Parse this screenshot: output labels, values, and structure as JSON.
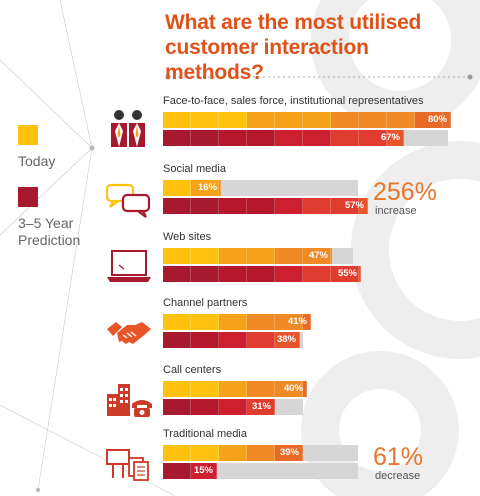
{
  "title": "What are the most utilised customer interaction methods?",
  "legend": [
    {
      "label": "Today",
      "color": "#ffc20e"
    },
    {
      "label": "3–5 Year Prediction",
      "color": "#a6192e"
    }
  ],
  "chart_data": {
    "type": "bar",
    "orientation": "horizontal",
    "title": "What are the most utilised customer interaction methods?",
    "categories": [
      "Face-to-face, sales force, institutional representatives",
      "Social media",
      "Web sites",
      "Channel partners",
      "Call centers",
      "Traditional media"
    ],
    "series": [
      {
        "name": "Today",
        "values": [
          80,
          16,
          47,
          41,
          40,
          39
        ]
      },
      {
        "name": "3–5 Year Prediction",
        "values": [
          67,
          57,
          55,
          38,
          31,
          15
        ]
      }
    ],
    "value_labels": {
      "today": [
        "80%",
        "16%",
        "47%",
        "41%",
        "40%",
        "39%"
      ],
      "prediction": [
        "67%",
        "57%",
        "55%",
        "38%",
        "31%",
        "15%"
      ]
    },
    "xlim": [
      0,
      100
    ],
    "annotations": [
      {
        "category": "Social media",
        "value": "256%",
        "label": "increase"
      },
      {
        "category": "Traditional media",
        "value": "61%",
        "label": "decrease"
      }
    ]
  },
  "icons": [
    "people-icon",
    "chat-bubbles-icon",
    "laptop-icon",
    "handshake-icon",
    "buildings-phone-icon",
    "billboard-documents-icon"
  ],
  "colors": {
    "title": "#e0521a",
    "today_gradient": [
      "#ffc20e",
      "#f7a21b",
      "#f08a24",
      "#e76b26"
    ],
    "prediction_gradient": [
      "#a6192e",
      "#b5172c",
      "#cc1f2f",
      "#e03d30",
      "#e8552a"
    ],
    "track": "#d6d6d6",
    "annotation": "#e8762c"
  }
}
